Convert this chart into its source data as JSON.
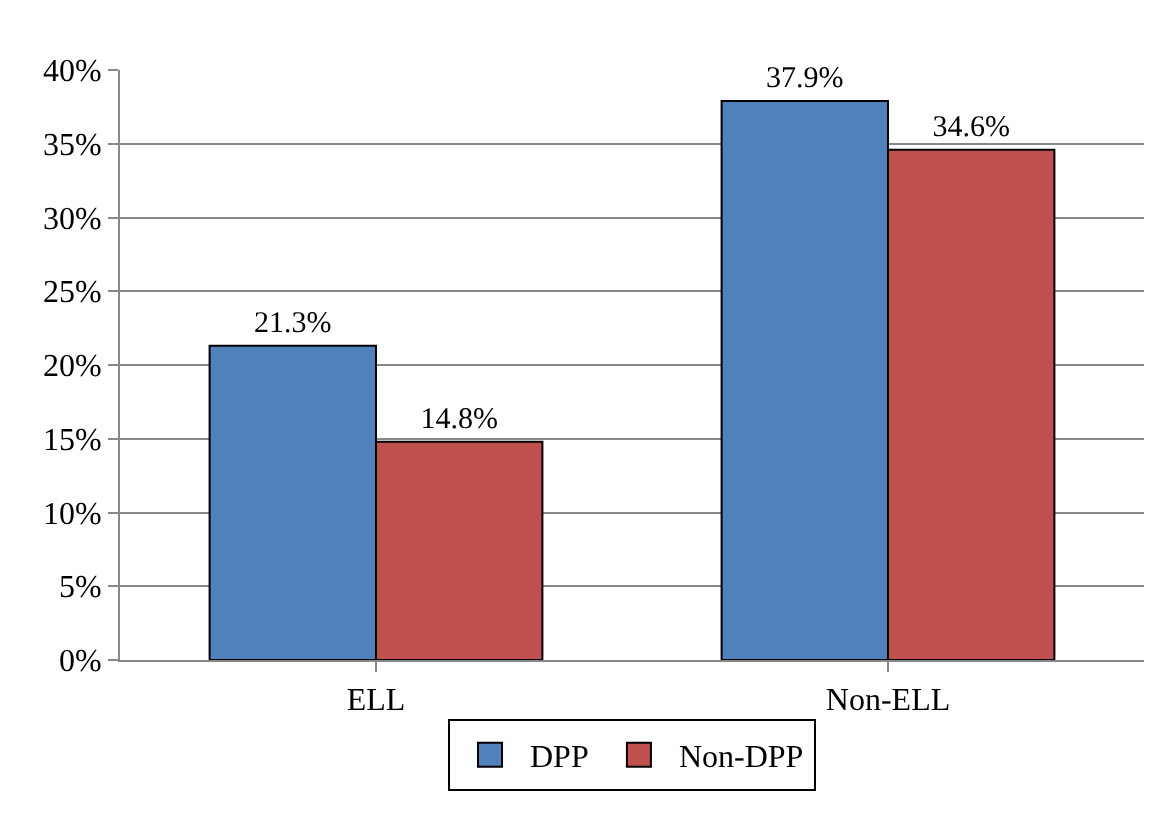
{
  "chart_data": {
    "type": "bar",
    "categories": [
      "ELL",
      "Non-ELL"
    ],
    "series": [
      {
        "name": "DPP",
        "color": "#4f81bd",
        "values": [
          21.3,
          37.9
        ],
        "value_labels": [
          "21.3%",
          "37.9%"
        ]
      },
      {
        "name": "Non-DPP",
        "color": "#c0504d",
        "values": [
          14.8,
          34.6
        ],
        "value_labels": [
          "14.8%",
          "34.6%"
        ]
      }
    ],
    "ylim": [
      0,
      40
    ],
    "yticks": [
      {
        "value": 0,
        "label": "0%"
      },
      {
        "value": 5,
        "label": "5%"
      },
      {
        "value": 10,
        "label": "10%"
      },
      {
        "value": 15,
        "label": "15%"
      },
      {
        "value": 20,
        "label": "20%"
      },
      {
        "value": 25,
        "label": "25%"
      },
      {
        "value": 30,
        "label": "30%"
      },
      {
        "value": 35,
        "label": "35%"
      },
      {
        "value": 40,
        "label": "40%"
      }
    ],
    "grid": "y",
    "legend": "bottom"
  }
}
